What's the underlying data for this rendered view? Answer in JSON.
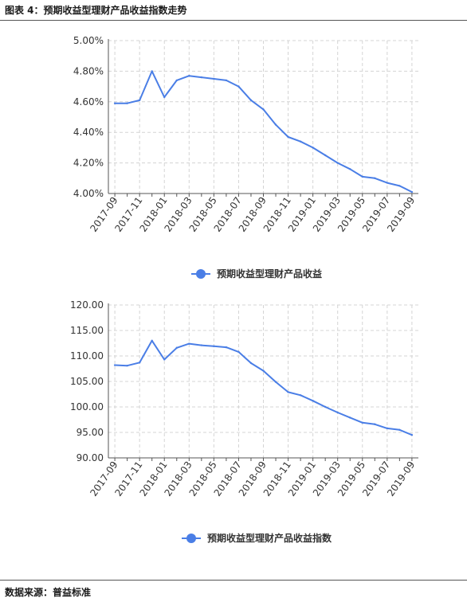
{
  "header": {
    "title": "图表 4：预期收益型理财产品收益指数走势"
  },
  "footer": {
    "source": "数据来源：普益标准"
  },
  "colors": {
    "line": "#4a7ee6",
    "grid": "#d4d4d4",
    "axis": "#555555"
  },
  "chart_data": [
    {
      "type": "line",
      "x": [
        "2017-09",
        "2017-10",
        "2017-11",
        "2017-12",
        "2018-01",
        "2018-02",
        "2018-03",
        "2018-04",
        "2018-05",
        "2018-06",
        "2018-07",
        "2018-08",
        "2018-09",
        "2018-10",
        "2018-11",
        "2018-12",
        "2019-01",
        "2019-02",
        "2019-03",
        "2019-04",
        "2019-05",
        "2019-06",
        "2019-07",
        "2019-08",
        "2019-09"
      ],
      "tick_labels": [
        "2017-09",
        "2017-11",
        "2018-01",
        "2018-03",
        "2018-05",
        "2018-07",
        "2018-09",
        "2018-11",
        "2019-01",
        "2019-03",
        "2019-05",
        "2019-07",
        "2019-09"
      ],
      "y_tick_labels": [
        "4.00%",
        "4.20%",
        "4.40%",
        "4.60%",
        "4.80%",
        "5.00%"
      ],
      "ylim": [
        4.0,
        5.0
      ],
      "grid": true,
      "legend": "bottom-center",
      "series": [
        {
          "name": "预期收益型理财产品收益",
          "values": [
            4.59,
            4.59,
            4.61,
            4.8,
            4.63,
            4.74,
            4.77,
            4.76,
            4.75,
            4.74,
            4.7,
            4.61,
            4.55,
            4.45,
            4.37,
            4.34,
            4.3,
            4.25,
            4.2,
            4.16,
            4.11,
            4.1,
            4.07,
            4.05,
            4.01
          ]
        }
      ]
    },
    {
      "type": "line",
      "x": [
        "2017-09",
        "2017-10",
        "2017-11",
        "2017-12",
        "2018-01",
        "2018-02",
        "2018-03",
        "2018-04",
        "2018-05",
        "2018-06",
        "2018-07",
        "2018-08",
        "2018-09",
        "2018-10",
        "2018-11",
        "2018-12",
        "2019-01",
        "2019-02",
        "2019-03",
        "2019-04",
        "2019-05",
        "2019-06",
        "2019-07",
        "2019-08",
        "2019-09"
      ],
      "tick_labels": [
        "2017-09",
        "2017-11",
        "2018-01",
        "2018-03",
        "2018-05",
        "2018-07",
        "2018-09",
        "2018-11",
        "2019-01",
        "2019-03",
        "2019-05",
        "2019-07",
        "2019-09"
      ],
      "y_tick_labels": [
        "90.00",
        "95.00",
        "100.00",
        "105.00",
        "110.00",
        "115.00",
        "120.00"
      ],
      "ylim": [
        90,
        120
      ],
      "grid": true,
      "legend": "bottom-center",
      "series": [
        {
          "name": "预期收益型理财产品收益指数",
          "values": [
            108.2,
            108.1,
            108.7,
            113.0,
            109.3,
            111.6,
            112.4,
            112.1,
            111.9,
            111.7,
            110.8,
            108.6,
            107.1,
            104.9,
            102.9,
            102.3,
            101.2,
            100.0,
            98.9,
            97.9,
            96.9,
            96.6,
            95.8,
            95.5,
            94.5
          ]
        }
      ]
    }
  ]
}
